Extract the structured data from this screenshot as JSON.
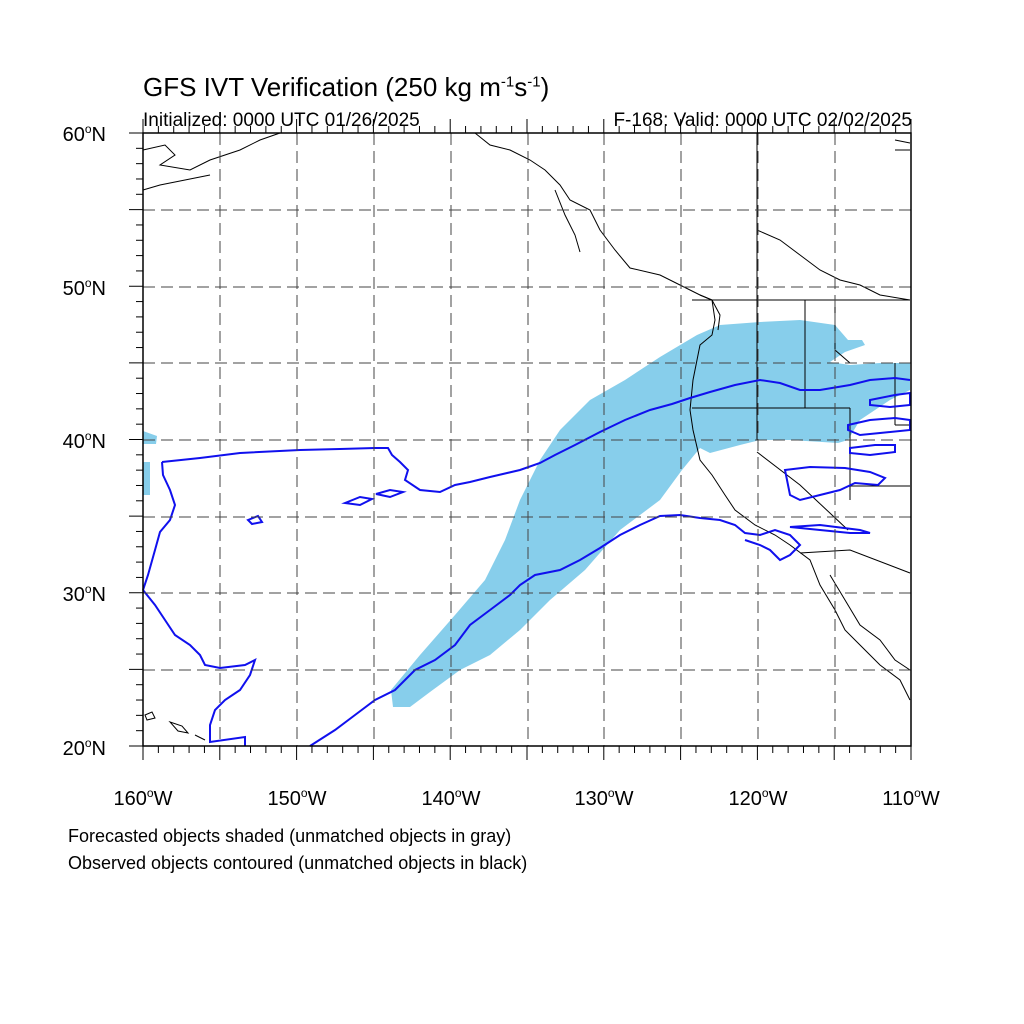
{
  "title": {
    "prefix": "GFS IVT Verification (250 kg m",
    "exp1": "-1",
    "mid": "s",
    "exp2": "-1",
    "suffix": ")"
  },
  "subtitle_left": "Initialized: 0000 UTC 01/26/2025",
  "subtitle_right": "F-168: Valid: 0000 UTC 02/02/2025",
  "lat_labels": [
    "60",
    "50",
    "40",
    "30",
    "20"
  ],
  "lat_suffix": "N",
  "lon_labels": [
    "160",
    "150",
    "140",
    "130",
    "120",
    "110"
  ],
  "lon_suffix": "W",
  "footnote_1": "Forecasted objects shaded (unmatched objects in gray)",
  "footnote_2": "Observed objects contoured (unmatched objects in black)",
  "map_extent": {
    "lon_min": -160,
    "lon_max": -110,
    "lat_min": 20,
    "lat_max": 60
  },
  "colors": {
    "forecast_shade": "#87ceeb",
    "observed_contour": "#1010ee",
    "coastline": "#000000",
    "grid": "#444444"
  }
}
